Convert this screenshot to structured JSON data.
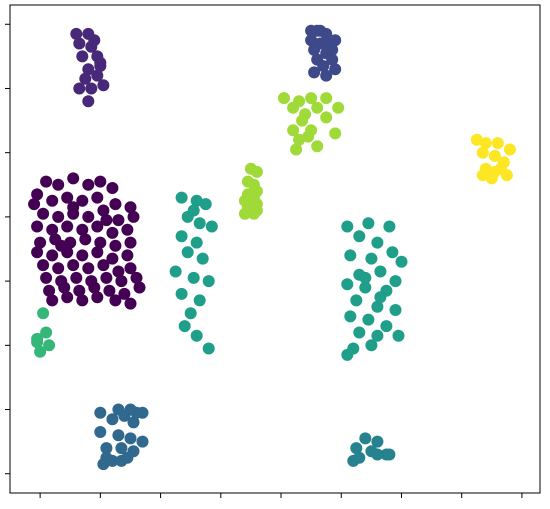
{
  "chart_data": {
    "type": "scatter",
    "title": "",
    "xlabel": "",
    "ylabel": "",
    "xlim": [
      -0.5,
      8.3
    ],
    "ylim": [
      -0.3,
      7.3
    ],
    "x_ticks": [
      0,
      1,
      2,
      3,
      4,
      5,
      6,
      7,
      8
    ],
    "y_ticks": [
      0,
      1,
      2,
      3,
      4,
      5,
      6,
      7
    ],
    "tick_labels_visible": false,
    "grid": false,
    "legend": "none",
    "series": [
      {
        "color": "#440154",
        "points": [
          [
            -0.05,
            4.35
          ],
          [
            0.1,
            4.55
          ],
          [
            0.3,
            4.5
          ],
          [
            0.55,
            4.6
          ],
          [
            0.8,
            4.5
          ],
          [
            1.0,
            4.55
          ],
          [
            1.2,
            4.45
          ],
          [
            -0.1,
            4.2
          ],
          [
            0.2,
            4.25
          ],
          [
            0.45,
            4.3
          ],
          [
            0.7,
            4.25
          ],
          [
            0.95,
            4.3
          ],
          [
            1.25,
            4.2
          ],
          [
            1.5,
            4.15
          ],
          [
            0.05,
            4.05
          ],
          [
            0.3,
            4.0
          ],
          [
            0.55,
            4.05
          ],
          [
            0.8,
            4.0
          ],
          [
            1.05,
            4.1
          ],
          [
            1.3,
            3.95
          ],
          [
            1.55,
            4.0
          ],
          [
            -0.05,
            3.85
          ],
          [
            0.2,
            3.8
          ],
          [
            0.45,
            3.85
          ],
          [
            0.7,
            3.8
          ],
          [
            0.95,
            3.85
          ],
          [
            1.2,
            3.75
          ],
          [
            1.45,
            3.8
          ],
          [
            0.0,
            3.6
          ],
          [
            0.25,
            3.65
          ],
          [
            0.5,
            3.6
          ],
          [
            0.75,
            3.65
          ],
          [
            1.0,
            3.6
          ],
          [
            1.25,
            3.55
          ],
          [
            1.5,
            3.6
          ],
          [
            -0.05,
            3.45
          ],
          [
            0.2,
            3.4
          ],
          [
            0.45,
            3.45
          ],
          [
            0.7,
            3.4
          ],
          [
            0.95,
            3.45
          ],
          [
            1.2,
            3.35
          ],
          [
            1.45,
            3.4
          ],
          [
            0.05,
            3.25
          ],
          [
            0.3,
            3.2
          ],
          [
            0.55,
            3.25
          ],
          [
            0.8,
            3.2
          ],
          [
            1.05,
            3.25
          ],
          [
            1.3,
            3.15
          ],
          [
            1.5,
            3.2
          ],
          [
            0.1,
            3.05
          ],
          [
            0.35,
            3.0
          ],
          [
            0.6,
            3.05
          ],
          [
            0.85,
            3.0
          ],
          [
            1.1,
            3.05
          ],
          [
            1.35,
            3.0
          ],
          [
            1.6,
            3.05
          ],
          [
            0.15,
            2.85
          ],
          [
            0.4,
            2.9
          ],
          [
            0.65,
            2.85
          ],
          [
            0.9,
            2.9
          ],
          [
            1.15,
            2.85
          ],
          [
            1.4,
            2.8
          ],
          [
            1.65,
            2.9
          ],
          [
            0.2,
            2.7
          ],
          [
            0.45,
            2.75
          ],
          [
            0.7,
            2.7
          ],
          [
            0.95,
            2.75
          ],
          [
            1.25,
            2.7
          ],
          [
            1.5,
            2.65
          ],
          [
            0.55,
            4.15
          ],
          [
            1.1,
            3.95
          ],
          [
            0.35,
            3.55
          ]
        ]
      },
      {
        "color": "#482878",
        "points": [
          [
            0.6,
            6.85
          ],
          [
            0.8,
            6.85
          ],
          [
            0.65,
            6.7
          ],
          [
            0.85,
            6.65
          ],
          [
            0.95,
            6.5
          ],
          [
            0.7,
            6.5
          ],
          [
            1.0,
            6.4
          ],
          [
            0.8,
            6.3
          ],
          [
            0.95,
            6.2
          ],
          [
            0.75,
            6.15
          ],
          [
            1.05,
            6.05
          ],
          [
            0.85,
            6.0
          ],
          [
            0.65,
            6.0
          ],
          [
            0.8,
            5.8
          ],
          [
            0.9,
            6.75
          ],
          [
            1.0,
            6.35
          ]
        ]
      },
      {
        "color": "#3e4989",
        "points": [
          [
            4.5,
            6.9
          ],
          [
            4.65,
            6.9
          ],
          [
            4.75,
            6.85
          ],
          [
            4.5,
            6.75
          ],
          [
            4.65,
            6.7
          ],
          [
            4.8,
            6.7
          ],
          [
            4.55,
            6.6
          ],
          [
            4.75,
            6.55
          ],
          [
            4.6,
            6.45
          ],
          [
            4.85,
            6.45
          ],
          [
            4.7,
            6.35
          ],
          [
            4.9,
            6.3
          ],
          [
            4.55,
            6.25
          ],
          [
            4.75,
            6.2
          ],
          [
            4.9,
            6.75
          ],
          [
            4.85,
            6.6
          ],
          [
            4.6,
            6.9
          ]
        ]
      },
      {
        "color": "#31688e",
        "points": [
          [
            1.0,
            0.95
          ],
          [
            1.3,
            1.0
          ],
          [
            1.5,
            1.0
          ],
          [
            1.7,
            0.95
          ],
          [
            1.4,
            0.9
          ],
          [
            1.2,
            0.85
          ],
          [
            1.55,
            0.8
          ],
          [
            1.0,
            0.65
          ],
          [
            1.3,
            0.6
          ],
          [
            1.5,
            0.55
          ],
          [
            1.7,
            0.5
          ],
          [
            1.1,
            0.4
          ],
          [
            1.35,
            0.4
          ],
          [
            1.55,
            0.35
          ],
          [
            1.1,
            0.25
          ],
          [
            1.45,
            0.25
          ],
          [
            1.2,
            0.2
          ],
          [
            1.05,
            0.15
          ],
          [
            1.35,
            0.2
          ],
          [
            1.6,
            0.95
          ]
        ]
      },
      {
        "color": "#26828e",
        "points": [
          [
            5.4,
            0.55
          ],
          [
            5.6,
            0.5
          ],
          [
            5.25,
            0.4
          ],
          [
            5.5,
            0.35
          ],
          [
            5.75,
            0.3
          ],
          [
            5.3,
            0.25
          ],
          [
            5.6,
            0.3
          ],
          [
            5.2,
            0.2
          ],
          [
            5.8,
            0.3
          ]
        ]
      },
      {
        "color": "#1f9e89",
        "points": [
          [
            2.35,
            4.3
          ],
          [
            2.6,
            4.25
          ],
          [
            2.75,
            4.2
          ],
          [
            2.45,
            4.0
          ],
          [
            2.65,
            3.9
          ],
          [
            2.85,
            3.85
          ],
          [
            2.35,
            3.7
          ],
          [
            2.6,
            3.6
          ],
          [
            2.45,
            3.45
          ],
          [
            2.7,
            3.35
          ],
          [
            2.25,
            3.15
          ],
          [
            2.55,
            3.05
          ],
          [
            2.8,
            3.0
          ],
          [
            2.35,
            2.8
          ],
          [
            2.65,
            2.7
          ],
          [
            2.5,
            2.5
          ],
          [
            2.4,
            2.3
          ],
          [
            2.6,
            2.15
          ],
          [
            2.8,
            1.95
          ],
          [
            2.55,
            4.1
          ],
          [
            5.1,
            3.85
          ],
          [
            5.45,
            3.9
          ],
          [
            5.8,
            3.85
          ],
          [
            5.3,
            3.7
          ],
          [
            5.6,
            3.6
          ],
          [
            5.85,
            3.45
          ],
          [
            5.15,
            3.4
          ],
          [
            5.5,
            3.35
          ],
          [
            6.0,
            3.3
          ],
          [
            5.3,
            3.1
          ],
          [
            5.65,
            3.15
          ],
          [
            5.9,
            3.0
          ],
          [
            5.1,
            2.95
          ],
          [
            5.4,
            2.9
          ],
          [
            5.75,
            2.85
          ],
          [
            5.25,
            2.7
          ],
          [
            5.6,
            2.6
          ],
          [
            5.9,
            2.55
          ],
          [
            5.15,
            2.45
          ],
          [
            5.45,
            2.4
          ],
          [
            5.75,
            2.3
          ],
          [
            5.3,
            2.2
          ],
          [
            5.6,
            2.15
          ],
          [
            5.95,
            2.15
          ],
          [
            5.2,
            1.95
          ],
          [
            5.5,
            2.0
          ],
          [
            5.1,
            1.85
          ],
          [
            5.65,
            2.75
          ],
          [
            5.4,
            3.05
          ]
        ]
      },
      {
        "color": "#35b779",
        "points": [
          [
            0.05,
            2.5
          ],
          [
            0.1,
            2.2
          ],
          [
            -0.05,
            2.1
          ],
          [
            0.15,
            2.0
          ],
          [
            0.0,
            1.9
          ],
          [
            -0.05,
            2.05
          ]
        ]
      },
      {
        "color": "#a0da39",
        "points": [
          [
            3.5,
            4.75
          ],
          [
            3.6,
            4.7
          ],
          [
            3.45,
            4.55
          ],
          [
            3.55,
            4.5
          ],
          [
            3.6,
            4.4
          ],
          [
            3.45,
            4.35
          ],
          [
            3.55,
            4.3
          ],
          [
            3.4,
            4.25
          ],
          [
            3.6,
            4.2
          ],
          [
            3.5,
            4.15
          ],
          [
            3.4,
            4.05
          ],
          [
            3.55,
            4.05
          ],
          [
            3.6,
            4.1
          ],
          [
            3.45,
            4.15
          ],
          [
            4.05,
            5.85
          ],
          [
            4.3,
            5.8
          ],
          [
            4.5,
            5.85
          ],
          [
            4.75,
            5.85
          ],
          [
            4.95,
            5.7
          ],
          [
            4.2,
            5.7
          ],
          [
            4.6,
            5.7
          ],
          [
            4.4,
            5.6
          ],
          [
            4.75,
            5.55
          ],
          [
            4.2,
            5.35
          ],
          [
            4.5,
            5.35
          ],
          [
            4.9,
            5.3
          ],
          [
            4.3,
            5.2
          ],
          [
            4.6,
            5.1
          ],
          [
            4.25,
            5.05
          ],
          [
            4.45,
            5.25
          ],
          [
            4.35,
            5.5
          ]
        ]
      },
      {
        "color": "#fde725",
        "points": [
          [
            7.25,
            5.2
          ],
          [
            7.4,
            5.15
          ],
          [
            7.6,
            5.15
          ],
          [
            7.8,
            5.05
          ],
          [
            7.35,
            5.0
          ],
          [
            7.55,
            4.95
          ],
          [
            7.7,
            4.85
          ],
          [
            7.4,
            4.75
          ],
          [
            7.55,
            4.7
          ],
          [
            7.35,
            4.65
          ],
          [
            7.75,
            4.65
          ],
          [
            7.5,
            4.6
          ],
          [
            7.65,
            4.75
          ]
        ]
      }
    ]
  }
}
